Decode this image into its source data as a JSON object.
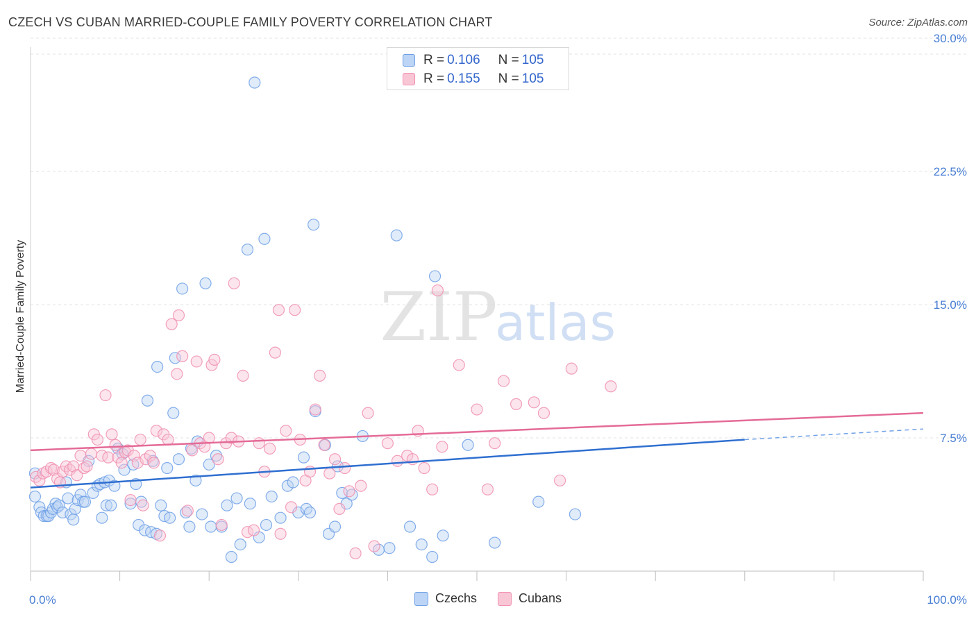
{
  "title": "CZECH VS CUBAN MARRIED-COUPLE FAMILY POVERTY CORRELATION CHART",
  "source": "Source: ZipAtlas.com",
  "watermark": {
    "zip": "ZIP",
    "atlas": "atlas"
  },
  "legend_top": [
    {
      "r_label": "R =",
      "r_value": "0.106",
      "n_label": "N =",
      "n_value": "105",
      "color": "#6fa0e6"
    },
    {
      "r_label": "R =",
      "r_value": "0.155",
      "n_label": "N =",
      "n_value": "105",
      "color": "#f08fb0"
    }
  ],
  "chart_data": {
    "type": "scatter",
    "title": "CZECH VS CUBAN MARRIED-COUPLE FAMILY POVERTY CORRELATION CHART",
    "xlabel": "",
    "ylabel": "Married-Couple Family Poverty",
    "xlim": [
      0,
      100
    ],
    "ylim": [
      0,
      31
    ],
    "x_tick_labels": [
      "0.0%",
      "100.0%"
    ],
    "y_ticks": [
      7.5,
      15.0,
      22.5,
      30.0
    ],
    "y_tick_labels": [
      "7.5%",
      "15.0%",
      "22.5%",
      "30.0%"
    ],
    "grid": "horizontal dashed",
    "legend_position": "top-center",
    "series": [
      {
        "name": "Czechs",
        "color": "#6fa0e6",
        "trend": {
          "x": [
            0,
            80
          ],
          "y": [
            4.7,
            7.4
          ],
          "dashed_to": [
            100,
            8.0
          ]
        },
        "points": [
          [
            0.5,
            5.5
          ],
          [
            0.5,
            4.2
          ],
          [
            1,
            3.6
          ],
          [
            1.2,
            3.3
          ],
          [
            1.5,
            3.1
          ],
          [
            1.8,
            3.1
          ],
          [
            2,
            3.1
          ],
          [
            2.3,
            3.3
          ],
          [
            2.5,
            3.5
          ],
          [
            2.8,
            3.8
          ],
          [
            3,
            3.6
          ],
          [
            3.2,
            3.7
          ],
          [
            3.6,
            3.3
          ],
          [
            4,
            5.0
          ],
          [
            4.2,
            4.1
          ],
          [
            4.5,
            3.2
          ],
          [
            4.8,
            2.9
          ],
          [
            5,
            3.5
          ],
          [
            5.3,
            4.0
          ],
          [
            5.6,
            4.3
          ],
          [
            5.9,
            3.9
          ],
          [
            6.1,
            3.9
          ],
          [
            6.5,
            6.2
          ],
          [
            7,
            4.4
          ],
          [
            7.5,
            4.8
          ],
          [
            7.8,
            4.9
          ],
          [
            8,
            3.0
          ],
          [
            8.3,
            5.0
          ],
          [
            8.5,
            3.7
          ],
          [
            8.8,
            5.1
          ],
          [
            9,
            3.7
          ],
          [
            9.4,
            4.8
          ],
          [
            9.8,
            6.9
          ],
          [
            10.3,
            6.6
          ],
          [
            10.5,
            5.7
          ],
          [
            11.2,
            3.8
          ],
          [
            11.5,
            6.0
          ],
          [
            11.8,
            4.9
          ],
          [
            12.1,
            2.6
          ],
          [
            12.4,
            3.9
          ],
          [
            12.8,
            2.3
          ],
          [
            13.1,
            9.6
          ],
          [
            13.5,
            2.2
          ],
          [
            13.7,
            6.2
          ],
          [
            14.1,
            2.1
          ],
          [
            14.2,
            11.5
          ],
          [
            14.6,
            3.7
          ],
          [
            15,
            3.1
          ],
          [
            15.3,
            5.8
          ],
          [
            15.6,
            3.0
          ],
          [
            16,
            8.9
          ],
          [
            16.2,
            12.0
          ],
          [
            16.6,
            6.3
          ],
          [
            17,
            15.9
          ],
          [
            17.4,
            3.3
          ],
          [
            17.8,
            2.5
          ],
          [
            18,
            6.9
          ],
          [
            18.5,
            5.1
          ],
          [
            18.7,
            7.3
          ],
          [
            19.2,
            3.2
          ],
          [
            19.6,
            16.2
          ],
          [
            20,
            6.0
          ],
          [
            20.2,
            2.5
          ],
          [
            20.8,
            6.5
          ],
          [
            21.4,
            2.5
          ],
          [
            22,
            3.7
          ],
          [
            22.5,
            0.8
          ],
          [
            23.1,
            4.1
          ],
          [
            23.5,
            1.5
          ],
          [
            24.3,
            18.1
          ],
          [
            24.6,
            3.8
          ],
          [
            25.1,
            27.5
          ],
          [
            25.6,
            1.9
          ],
          [
            26.2,
            18.7
          ],
          [
            26.4,
            2.6
          ],
          [
            27,
            4.2
          ],
          [
            28,
            3.0
          ],
          [
            28.8,
            4.8
          ],
          [
            29.4,
            5.0
          ],
          [
            30,
            3.3
          ],
          [
            30.6,
            6.4
          ],
          [
            30.9,
            3.5
          ],
          [
            31.3,
            3.3
          ],
          [
            31.7,
            19.5
          ],
          [
            31.9,
            9.0
          ],
          [
            33,
            7.1
          ],
          [
            33.4,
            2.1
          ],
          [
            34.1,
            2.5
          ],
          [
            34.4,
            5.9
          ],
          [
            34.9,
            4.4
          ],
          [
            35.4,
            3.8
          ],
          [
            36,
            4.3
          ],
          [
            37.2,
            7.6
          ],
          [
            39,
            1.2
          ],
          [
            40.2,
            1.3
          ],
          [
            41,
            18.9
          ],
          [
            42.5,
            2.5
          ],
          [
            43.8,
            1.5
          ],
          [
            45,
            0.8
          ],
          [
            45.3,
            16.6
          ],
          [
            46.2,
            2.0
          ],
          [
            49,
            7.1
          ],
          [
            52,
            1.6
          ],
          [
            56.9,
            3.9
          ],
          [
            61,
            3.2
          ]
        ]
      },
      {
        "name": "Cubans",
        "color": "#f08fb0",
        "trend": {
          "x": [
            0,
            100
          ],
          "y": [
            6.8,
            8.9
          ]
        },
        "points": [
          [
            0.6,
            5.3
          ],
          [
            1,
            5.1
          ],
          [
            1.4,
            5.5
          ],
          [
            1.8,
            5.6
          ],
          [
            2.3,
            5.8
          ],
          [
            2.6,
            5.7
          ],
          [
            3,
            5.2
          ],
          [
            3.3,
            5.0
          ],
          [
            3.6,
            5.6
          ],
          [
            4,
            5.9
          ],
          [
            4.4,
            5.7
          ],
          [
            4.8,
            5.9
          ],
          [
            5.2,
            5.4
          ],
          [
            5.6,
            6.5
          ],
          [
            6,
            5.8
          ],
          [
            6.3,
            5.9
          ],
          [
            6.8,
            6.6
          ],
          [
            7.1,
            7.7
          ],
          [
            7.5,
            7.4
          ],
          [
            8,
            6.5
          ],
          [
            8.4,
            9.9
          ],
          [
            8.7,
            6.4
          ],
          [
            9.1,
            7.7
          ],
          [
            9.5,
            7.1
          ],
          [
            9.8,
            6.4
          ],
          [
            10.2,
            6.1
          ],
          [
            10.6,
            6.7
          ],
          [
            10.9,
            6.8
          ],
          [
            11.2,
            4.0
          ],
          [
            11.6,
            6.5
          ],
          [
            12,
            6.1
          ],
          [
            12.3,
            7.4
          ],
          [
            12.6,
            3.7
          ],
          [
            12.9,
            6.3
          ],
          [
            13.4,
            6.5
          ],
          [
            13.8,
            6.1
          ],
          [
            14.1,
            7.9
          ],
          [
            14.5,
            2.0
          ],
          [
            14.9,
            7.7
          ],
          [
            15.4,
            7.4
          ],
          [
            15.8,
            13.9
          ],
          [
            16.4,
            11.1
          ],
          [
            16.6,
            14.4
          ],
          [
            17,
            12.1
          ],
          [
            17.6,
            3.4
          ],
          [
            18.1,
            6.8
          ],
          [
            18.6,
            11.8
          ],
          [
            19,
            7.2
          ],
          [
            19.5,
            7.0
          ],
          [
            20,
            7.5
          ],
          [
            20.3,
            11.6
          ],
          [
            20.6,
            11.9
          ],
          [
            21,
            6.3
          ],
          [
            21.4,
            2.6
          ],
          [
            21.9,
            7.2
          ],
          [
            22.5,
            7.5
          ],
          [
            22.8,
            16.2
          ],
          [
            23.3,
            7.3
          ],
          [
            23.8,
            11.0
          ],
          [
            24.3,
            2.2
          ],
          [
            25,
            2.3
          ],
          [
            25.6,
            7.2
          ],
          [
            26.2,
            5.6
          ],
          [
            26.8,
            6.9
          ],
          [
            27.4,
            12.3
          ],
          [
            27.8,
            14.7
          ],
          [
            28,
            2.1
          ],
          [
            28.6,
            7.9
          ],
          [
            29.2,
            3.6
          ],
          [
            29.6,
            14.7
          ],
          [
            30.2,
            7.4
          ],
          [
            30.8,
            5.1
          ],
          [
            31.3,
            5.6
          ],
          [
            31.9,
            9.1
          ],
          [
            32.4,
            11.0
          ],
          [
            32.9,
            7.1
          ],
          [
            33.5,
            5.5
          ],
          [
            34.1,
            6.3
          ],
          [
            34.6,
            3.5
          ],
          [
            35.2,
            5.8
          ],
          [
            35.7,
            4.5
          ],
          [
            36.4,
            1.0
          ],
          [
            37,
            4.8
          ],
          [
            37.8,
            8.9
          ],
          [
            38.5,
            1.4
          ],
          [
            40,
            7.2
          ],
          [
            41.1,
            6.2
          ],
          [
            42.2,
            6.5
          ],
          [
            42.8,
            6.3
          ],
          [
            43.4,
            7.9
          ],
          [
            44.1,
            5.8
          ],
          [
            45,
            4.6
          ],
          [
            45.6,
            15.8
          ],
          [
            46.1,
            7.0
          ],
          [
            48,
            11.6
          ],
          [
            50,
            9.1
          ],
          [
            51.2,
            4.6
          ],
          [
            52,
            7.2
          ],
          [
            53,
            10.7
          ],
          [
            54.4,
            9.4
          ],
          [
            56.4,
            9.5
          ],
          [
            57.5,
            8.9
          ],
          [
            59.3,
            5.1
          ],
          [
            60.6,
            11.4
          ],
          [
            65,
            10.4
          ]
        ]
      }
    ]
  }
}
